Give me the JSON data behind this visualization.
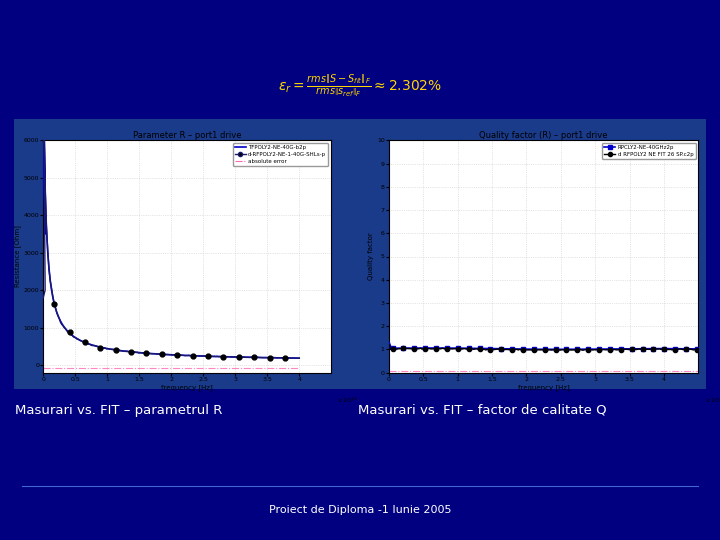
{
  "bg_color": "#000080",
  "plot_bg_color": "#FFFFFF",
  "fig_width": 7.2,
  "fig_height": 5.4,
  "plot1_title": "Parameter R – port1 drive",
  "plot1_xlabel": "frequency [Hz]",
  "plot1_ylabel": "Resistance [Ohm]",
  "plot1_xlim": [
    0,
    45000000000.0
  ],
  "plot1_ylim": [
    -200,
    6000
  ],
  "plot1_yticks": [
    0,
    1000,
    2000,
    3000,
    4000,
    5000,
    6000
  ],
  "plot1_xtick_vals": [
    0,
    5000000000.0,
    10000000000.0,
    15000000000.0,
    20000000000.0,
    25000000000.0,
    30000000000.0,
    35000000000.0,
    40000000000.0
  ],
  "plot1_xtick_labels": [
    "0",
    "0.5",
    "1",
    "1.5",
    "2",
    "2.5",
    "3",
    "3.5",
    "4"
  ],
  "plot1_legend": [
    "TFPOLY2-NE-40G-b2p",
    "d-RFPOLY2-NE-1-40G-SHLs-p",
    "absolute error"
  ],
  "plot2_title": "Quality factor (R) – port1 drive",
  "plot2_xlabel": "frequency [Hz]",
  "plot2_ylabel": "Quality factor",
  "plot2_xlim": [
    0,
    45000000000.0
  ],
  "plot2_ylim": [
    0,
    10
  ],
  "plot2_yticks": [
    0,
    1,
    2,
    3,
    4,
    5,
    6,
    7,
    8,
    9,
    10
  ],
  "plot2_xtick_vals": [
    0,
    5000000000.0,
    10000000000.0,
    15000000000.0,
    20000000000.0,
    25000000000.0,
    30000000000.0,
    35000000000.0,
    40000000000.0
  ],
  "plot2_xtick_labels": [
    "0",
    "0.5",
    "1",
    "1.5",
    "2",
    "2.5",
    "3",
    "3.5",
    "4"
  ],
  "plot2_legend": [
    "RPCLY2-NE-40GHz2p",
    "d RFPOLY2 NE FIT 26 SP.c2p"
  ],
  "caption1": "Masurari vs. FIT – parametrul R",
  "caption2": "Masurari vs. FIT – factor de calitate Q",
  "footer": "Proiect de Diploma -1 Iunie 2005",
  "band_color": "#1a3a8a",
  "line_color_blue": "#0000CD",
  "line_color_black": "#000000",
  "line_color_pink": "#FF69B4",
  "formula_color": "#FFD700",
  "text_color": "#FFFFFF"
}
